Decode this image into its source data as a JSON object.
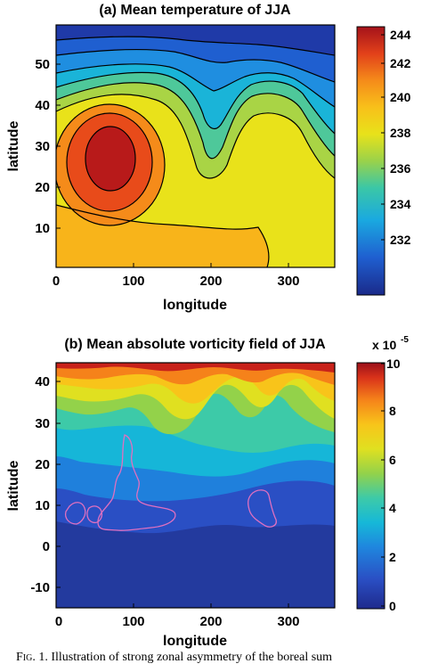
{
  "chart_data": [
    {
      "type": "heatmap",
      "title": "(a) Mean temperature of JJA",
      "xlabel": "longitude",
      "ylabel": "latitude",
      "xlim": [
        0,
        360
      ],
      "ylim": [
        0,
        59
      ],
      "xticks": [
        "0",
        "100",
        "200",
        "300"
      ],
      "yticks": [
        "10",
        "20",
        "30",
        "40",
        "50"
      ],
      "colorbar": {
        "range": [
          230,
          245
        ],
        "ticks": [
          "232",
          "234",
          "236",
          "238",
          "240",
          "242",
          "244"
        ]
      },
      "contour_lines": true,
      "features": [
        {
          "description": "warm maximum",
          "lon": 80,
          "lat": 27,
          "value": 244
        }
      ]
    },
    {
      "type": "heatmap",
      "title": "(b) Mean absolute vorticity field of JJA",
      "xlabel": "longitude",
      "ylabel": "latitude",
      "xlim": [
        0,
        360
      ],
      "ylim": [
        -15,
        45
      ],
      "xticks": [
        "0",
        "100",
        "200",
        "300"
      ],
      "yticks": [
        "-10",
        "0",
        "10",
        "20",
        "30",
        "40"
      ],
      "colorbar": {
        "range": [
          0,
          10
        ],
        "ticks": [
          "0",
          "2",
          "4",
          "6",
          "8",
          "10"
        ],
        "multiplier": "x 10",
        "exponent": "-5"
      },
      "overlay_contour_color": "#e070c0"
    }
  ],
  "caption": {
    "fig": "Fig. 1.",
    "text": " Illustration of strong zonal asymmetry of the boreal sum"
  }
}
